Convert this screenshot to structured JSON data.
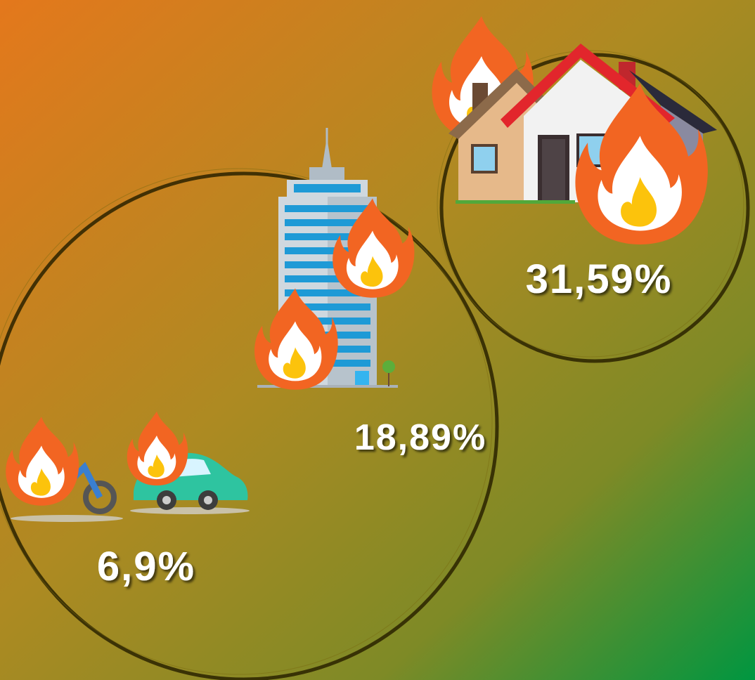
{
  "items": [
    {
      "label": "31,59%"
    },
    {
      "label": "18,89%"
    },
    {
      "label": "6,9%"
    }
  ]
}
